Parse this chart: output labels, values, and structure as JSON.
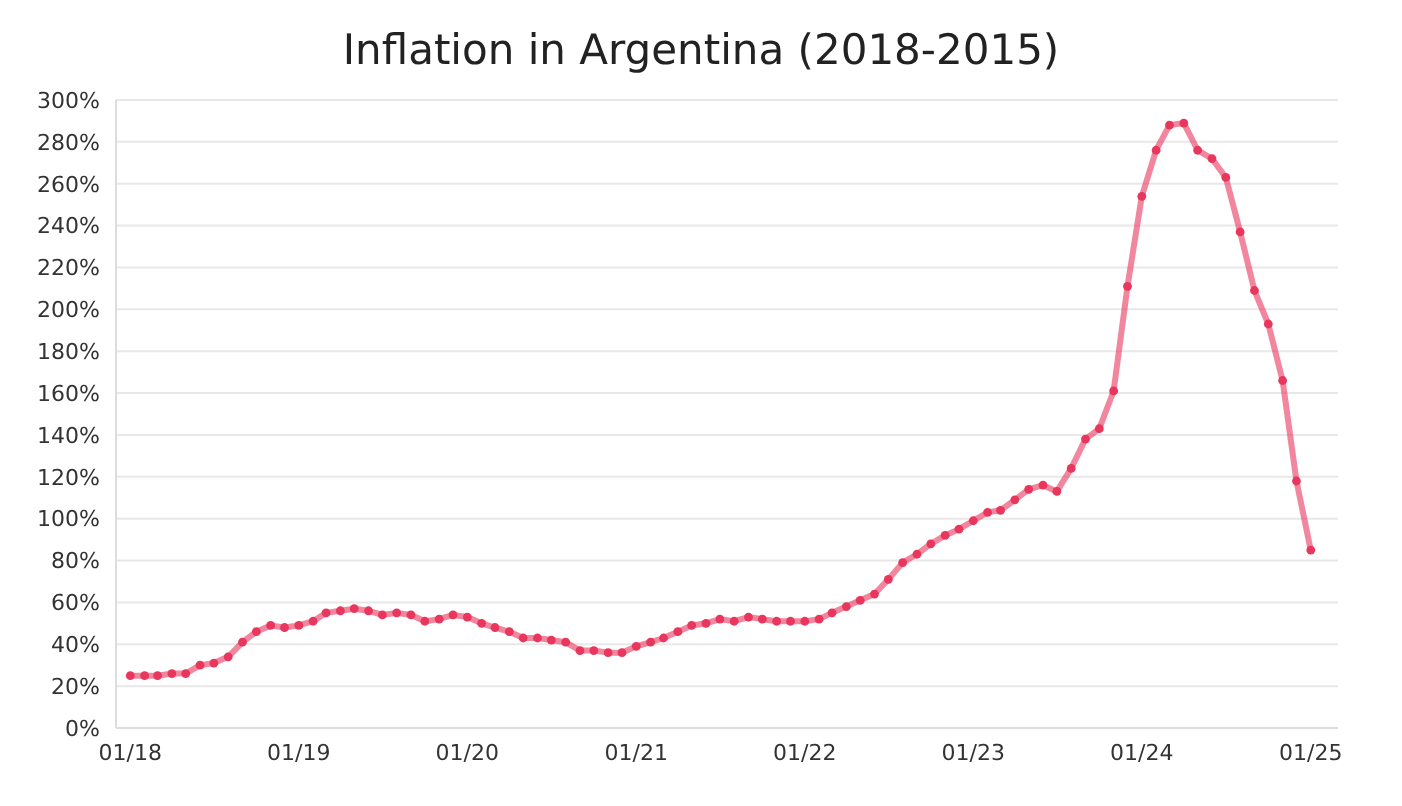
{
  "chart_data": {
    "type": "line",
    "title": "Inflation in Argentina (2018-2015)",
    "x": [
      "2018-01",
      "2018-02",
      "2018-03",
      "2018-04",
      "2018-05",
      "2018-06",
      "2018-07",
      "2018-08",
      "2018-09",
      "2018-10",
      "2018-11",
      "2018-12",
      "2019-01",
      "2019-02",
      "2019-03",
      "2019-04",
      "2019-05",
      "2019-06",
      "2019-07",
      "2019-08",
      "2019-09",
      "2019-10",
      "2019-11",
      "2019-12",
      "2020-01",
      "2020-02",
      "2020-03",
      "2020-04",
      "2020-05",
      "2020-06",
      "2020-07",
      "2020-08",
      "2020-09",
      "2020-10",
      "2020-11",
      "2020-12",
      "2021-01",
      "2021-02",
      "2021-03",
      "2021-04",
      "2021-05",
      "2021-06",
      "2021-07",
      "2021-08",
      "2021-09",
      "2021-10",
      "2021-11",
      "2021-12",
      "2022-01",
      "2022-02",
      "2022-03",
      "2022-04",
      "2022-05",
      "2022-06",
      "2022-07",
      "2022-08",
      "2022-09",
      "2022-10",
      "2022-11",
      "2022-12",
      "2023-01",
      "2023-02",
      "2023-03",
      "2023-04",
      "2023-05",
      "2023-06",
      "2023-07",
      "2023-08",
      "2023-09",
      "2023-10",
      "2023-11",
      "2023-12",
      "2024-01",
      "2024-02",
      "2024-03",
      "2024-04",
      "2024-05",
      "2024-06",
      "2024-07",
      "2024-08",
      "2024-09",
      "2024-10",
      "2024-11",
      "2024-12",
      "2025-01"
    ],
    "series": [
      {
        "color": "#e8365d",
        "values": [
          25,
          25,
          25,
          26,
          26,
          30,
          31,
          34,
          41,
          46,
          49,
          48,
          49,
          51,
          55,
          56,
          57,
          56,
          54,
          55,
          54,
          51,
          52,
          54,
          53,
          50,
          48,
          46,
          43,
          43,
          42,
          41,
          37,
          37,
          36,
          36,
          39,
          41,
          43,
          46,
          49,
          50,
          52,
          51,
          53,
          52,
          51,
          51,
          51,
          52,
          55,
          58,
          61,
          64,
          71,
          79,
          83,
          88,
          92,
          95,
          99,
          103,
          104,
          109,
          114,
          116,
          113,
          124,
          138,
          143,
          161,
          211,
          254,
          276,
          288,
          289,
          276,
          272,
          263,
          237,
          209,
          193,
          166,
          118,
          85
        ]
      }
    ],
    "xlim": [
      "2017-12",
      "2025-03"
    ],
    "xticks": [
      {
        "value": "2018-01",
        "label": "01/18"
      },
      {
        "value": "2019-01",
        "label": "01/19"
      },
      {
        "value": "2020-01",
        "label": "01/20"
      },
      {
        "value": "2021-01",
        "label": "01/21"
      },
      {
        "value": "2022-01",
        "label": "01/22"
      },
      {
        "value": "2023-01",
        "label": "01/23"
      },
      {
        "value": "2024-01",
        "label": "01/24"
      },
      {
        "value": "2025-01",
        "label": "01/25"
      }
    ],
    "ylim": [
      0,
      300
    ],
    "yticks": [
      {
        "value": 0,
        "label": "0%"
      },
      {
        "value": 20,
        "label": "20%"
      },
      {
        "value": 40,
        "label": "40%"
      },
      {
        "value": 60,
        "label": "60%"
      },
      {
        "value": 80,
        "label": "80%"
      },
      {
        "value": 100,
        "label": "100%"
      },
      {
        "value": 120,
        "label": "120%"
      },
      {
        "value": 140,
        "label": "140%"
      },
      {
        "value": 160,
        "label": "160%"
      },
      {
        "value": 180,
        "label": "180%"
      },
      {
        "value": 200,
        "label": "200%"
      },
      {
        "value": 220,
        "label": "220%"
      },
      {
        "value": 240,
        "label": "240%"
      },
      {
        "value": 260,
        "label": "260%"
      },
      {
        "value": 280,
        "label": "280%"
      },
      {
        "value": 300,
        "label": "300%"
      }
    ],
    "grid": "y",
    "marker": "circle",
    "line_style": "solid",
    "legend": false
  }
}
